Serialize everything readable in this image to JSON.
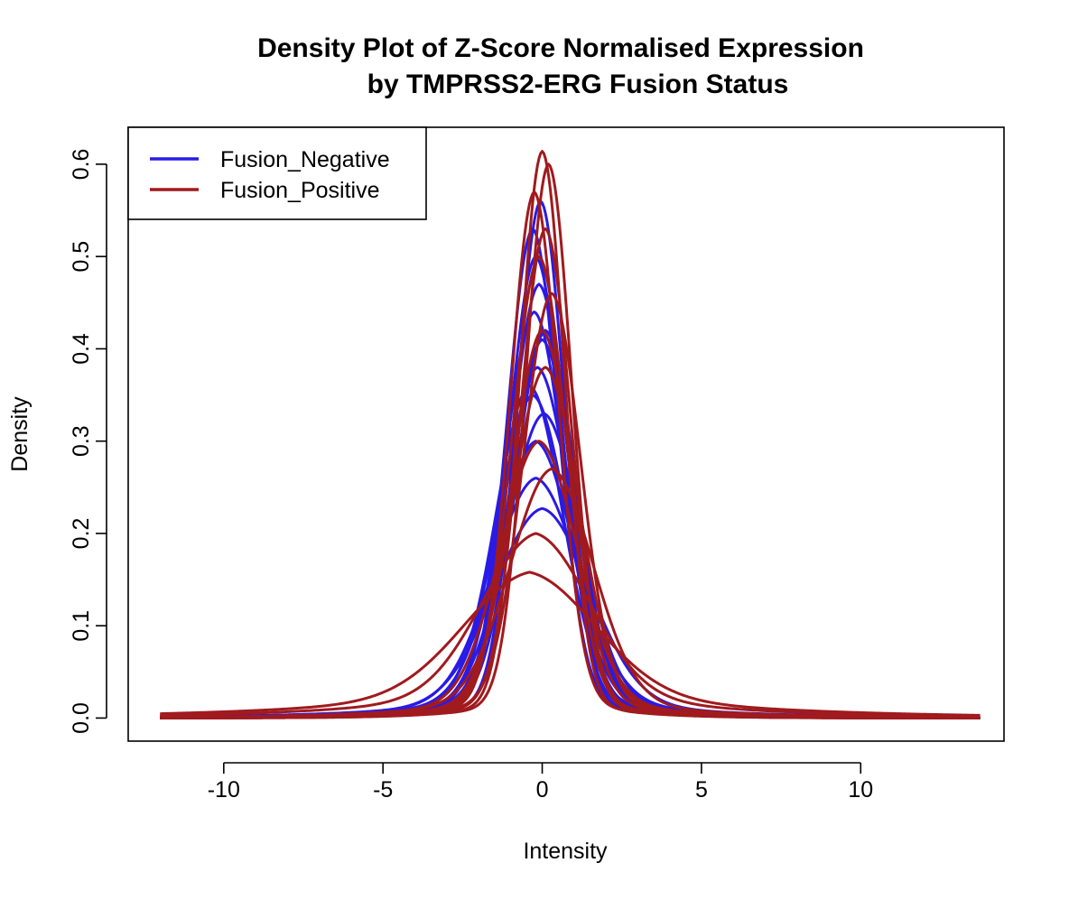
{
  "chart_data": {
    "type": "line",
    "title_line1": "Density Plot of Z-Score Normalised Expression",
    "title_line2": "by TMPRSS2-ERG Fusion Status",
    "xlabel": "Intensity",
    "ylabel": "Density",
    "xlim": [
      -13.0,
      14.5
    ],
    "ylim": [
      -0.025,
      0.64
    ],
    "x_ticks": [
      -10,
      -5,
      0,
      5,
      10
    ],
    "x_tick_labels": [
      "-10",
      "-5",
      "0",
      "5",
      "10"
    ],
    "y_ticks": [
      0.0,
      0.1,
      0.2,
      0.3,
      0.4,
      0.5,
      0.6
    ],
    "y_tick_labels": [
      "0.0",
      "0.1",
      "0.2",
      "0.3",
      "0.4",
      "0.5",
      "0.6"
    ],
    "legend": {
      "position": "top-left",
      "entries": [
        {
          "label": "Fusion_Negative",
          "color": "#2a1ae6"
        },
        {
          "label": "Fusion_Positive",
          "color": "#a01a1e"
        }
      ]
    },
    "grid": false,
    "series": [
      {
        "group": "Fusion_Negative",
        "color": "#2a1ae6",
        "peak": 0.56,
        "center": -0.05,
        "width": 0.75,
        "tail": 0.06
      },
      {
        "group": "Fusion_Negative",
        "color": "#2a1ae6",
        "peak": 0.53,
        "center": -0.3,
        "width": 0.8,
        "tail": 0.07
      },
      {
        "group": "Fusion_Negative",
        "color": "#2a1ae6",
        "peak": 0.5,
        "center": -0.2,
        "width": 0.85,
        "tail": 0.07
      },
      {
        "group": "Fusion_Negative",
        "color": "#2a1ae6",
        "peak": 0.47,
        "center": -0.1,
        "width": 0.9,
        "tail": 0.08
      },
      {
        "group": "Fusion_Negative",
        "color": "#2a1ae6",
        "peak": 0.44,
        "center": -0.25,
        "width": 0.95,
        "tail": 0.08
      },
      {
        "group": "Fusion_Negative",
        "color": "#2a1ae6",
        "peak": 0.41,
        "center": 0.0,
        "width": 1.0,
        "tail": 0.09
      },
      {
        "group": "Fusion_Negative",
        "color": "#2a1ae6",
        "peak": 0.38,
        "center": -0.15,
        "width": 1.05,
        "tail": 0.09
      },
      {
        "group": "Fusion_Negative",
        "color": "#2a1ae6",
        "peak": 0.35,
        "center": -0.3,
        "width": 1.1,
        "tail": 0.1
      },
      {
        "group": "Fusion_Negative",
        "color": "#2a1ae6",
        "peak": 0.33,
        "center": 0.05,
        "width": 1.15,
        "tail": 0.1
      },
      {
        "group": "Fusion_Negative",
        "color": "#2a1ae6",
        "peak": 0.3,
        "center": -0.2,
        "width": 1.2,
        "tail": 0.11
      },
      {
        "group": "Fusion_Negative",
        "color": "#2a1ae6",
        "peak": 0.26,
        "center": -0.2,
        "width": 1.35,
        "tail": 0.12
      },
      {
        "group": "Fusion_Negative",
        "color": "#2a1ae6",
        "peak": 0.227,
        "center": 0.0,
        "width": 1.5,
        "tail": 0.12
      },
      {
        "group": "Fusion_Negative",
        "color": "#2a1ae6",
        "peak": 0.42,
        "center": 0.1,
        "width": 0.95,
        "tail": 0.08
      },
      {
        "group": "Fusion_Negative",
        "color": "#2a1ae6",
        "peak": 0.36,
        "center": -0.4,
        "width": 1.05,
        "tail": 0.1
      },
      {
        "group": "Fusion_Positive",
        "color": "#a01a1e",
        "peak": 0.614,
        "center": 0.0,
        "width": 0.7,
        "tail": 0.05
      },
      {
        "group": "Fusion_Positive",
        "color": "#a01a1e",
        "peak": 0.6,
        "center": 0.2,
        "width": 0.72,
        "tail": 0.05
      },
      {
        "group": "Fusion_Positive",
        "color": "#a01a1e",
        "peak": 0.57,
        "center": -0.25,
        "width": 0.75,
        "tail": 0.06
      },
      {
        "group": "Fusion_Positive",
        "color": "#a01a1e",
        "peak": 0.53,
        "center": 0.1,
        "width": 0.8,
        "tail": 0.06
      },
      {
        "group": "Fusion_Positive",
        "color": "#a01a1e",
        "peak": 0.5,
        "center": -0.1,
        "width": 0.85,
        "tail": 0.07
      },
      {
        "group": "Fusion_Positive",
        "color": "#a01a1e",
        "peak": 0.46,
        "center": 0.3,
        "width": 0.9,
        "tail": 0.07
      },
      {
        "group": "Fusion_Positive",
        "color": "#a01a1e",
        "peak": 0.42,
        "center": 0.0,
        "width": 0.95,
        "tail": 0.08
      },
      {
        "group": "Fusion_Positive",
        "color": "#a01a1e",
        "peak": 0.38,
        "center": 0.1,
        "width": 1.05,
        "tail": 0.08
      },
      {
        "group": "Fusion_Positive",
        "color": "#a01a1e",
        "peak": 0.3,
        "center": -0.1,
        "width": 1.2,
        "tail": 0.1
      },
      {
        "group": "Fusion_Positive",
        "color": "#a01a1e",
        "peak": 0.27,
        "center": 0.3,
        "width": 1.3,
        "tail": 0.11
      },
      {
        "group": "Fusion_Positive",
        "color": "#a01a1e",
        "peak": 0.2,
        "center": -0.2,
        "width": 1.7,
        "tail": 0.2
      },
      {
        "group": "Fusion_Positive",
        "color": "#a01a1e",
        "peak": 0.158,
        "center": -0.4,
        "width": 2.1,
        "tail": 0.25
      }
    ]
  }
}
